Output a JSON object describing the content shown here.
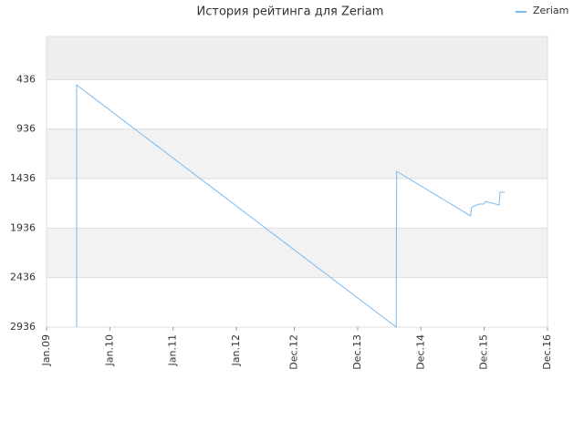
{
  "chart_data": {
    "type": "line",
    "title": "История рейтинга для Zeriam",
    "x": [
      5.7,
      5.7,
      66.3,
      66.4,
      80.4,
      80.6,
      81.1,
      82.0,
      82.9,
      83.2,
      84.6,
      85.8,
      86.0,
      86.9
    ],
    "series": [
      {
        "name": "Zeriam",
        "color": "#7cb9ec",
        "values": [
          2936,
          490,
          2936,
          1362,
          1813,
          1730,
          1712,
          1694,
          1694,
          1667,
          1685,
          1703,
          1574,
          1574
        ]
      }
    ],
    "xlim": [
      0,
      95
    ],
    "xticks": [
      {
        "value": 0,
        "label": "Jan.09"
      },
      {
        "value": 12,
        "label": "Jan.10"
      },
      {
        "value": 24,
        "label": "Jan.11"
      },
      {
        "value": 36,
        "label": "Jan.12"
      },
      {
        "value": 47,
        "label": "Dec.12"
      },
      {
        "value": 59,
        "label": "Dec.13"
      },
      {
        "value": 71,
        "label": "Dec.14"
      },
      {
        "value": 83,
        "label": "Dec.15"
      },
      {
        "value": 95,
        "label": "Dec.16"
      }
    ],
    "ylim": [
      2936,
      0
    ],
    "yticks": [
      436,
      936,
      1436,
      1936,
      2436,
      2936
    ],
    "grid": true,
    "legend": "top-right"
  }
}
